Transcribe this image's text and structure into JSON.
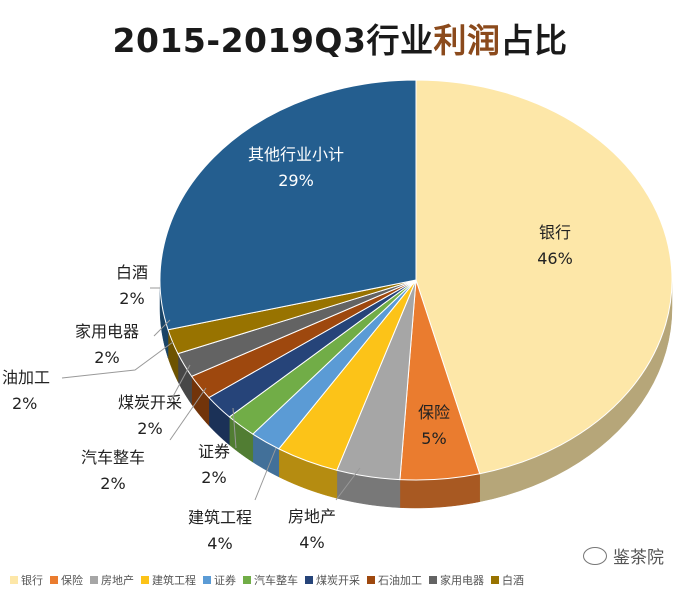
{
  "chart_data": {
    "type": "pie",
    "title": {
      "prefix": "2015-2019Q3行业",
      "highlight": "利润",
      "suffix": "占比"
    },
    "slices": [
      {
        "label": "银行",
        "value": 46,
        "value_text": "46%",
        "color": "#fde7a8"
      },
      {
        "label": "保险",
        "value": 5,
        "value_text": "5%",
        "color": "#ea7c2f"
      },
      {
        "label": "房地产",
        "value": 4,
        "value_text": "4%",
        "color": "#a6a6a6"
      },
      {
        "label": "建筑工程",
        "value": 4,
        "value_text": "4%",
        "color": "#fcc318"
      },
      {
        "label": "证券",
        "value": 2,
        "value_text": "2%",
        "color": "#5b9bd5"
      },
      {
        "label": "汽车整车",
        "value": 2,
        "value_text": "2%",
        "color": "#71ad47"
      },
      {
        "label": "煤炭开采",
        "value": 2,
        "value_text": "2%",
        "color": "#264479"
      },
      {
        "label": "石油加工",
        "value": 2,
        "value_text": "2%",
        "color": "#9e480e"
      },
      {
        "label": "家用电器",
        "value": 2,
        "value_text": "2%",
        "color": "#636363"
      },
      {
        "label": "白酒",
        "value": 2,
        "value_text": "2%",
        "color": "#987300"
      },
      {
        "label": "其他行业小计",
        "value": 29,
        "value_text": "29%",
        "color": "#245e8f"
      }
    ],
    "visible_labels": {
      "石油加工": "油加工"
    },
    "legend": [
      "银行",
      "保险",
      "房地产",
      "建筑工程",
      "证券",
      "汽车整车",
      "煤炭开采",
      "石油加工",
      "家用电器",
      "白酒"
    ],
    "legend_position": "bottom"
  },
  "watermark": "鉴茶院"
}
